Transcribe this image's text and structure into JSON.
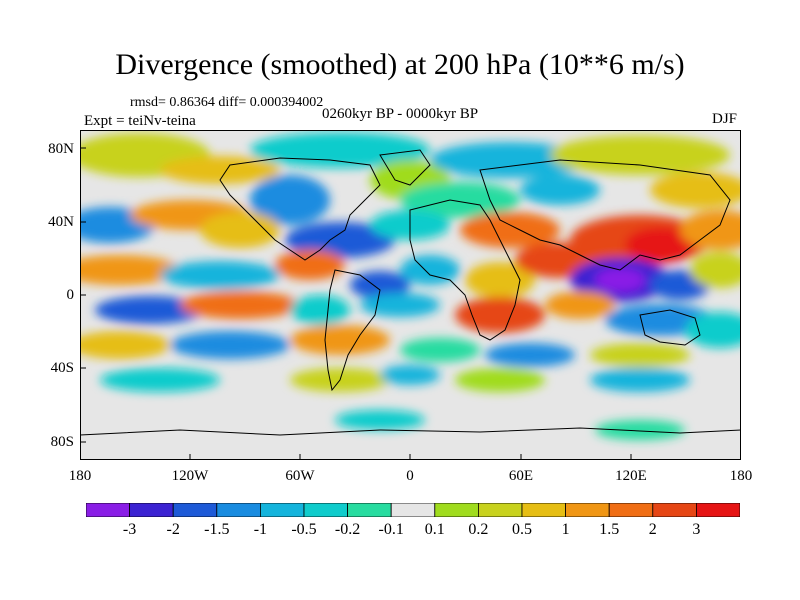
{
  "title": "Divergence (smoothed) at 200 hPa (10**6 m/s)",
  "stats_line": "rmsd= 0.86364  diff= 0.000394002",
  "experiment": "Expt = teiNv-teina",
  "period": "0260kyr BP - 0000kyr BP",
  "season": "DJF",
  "lat_labels": [
    "80N",
    "40N",
    "0",
    "40S",
    "80S"
  ],
  "lon_labels": [
    "180",
    "120W",
    "60W",
    "0",
    "60E",
    "120E",
    "180"
  ],
  "colorbar": {
    "colors": [
      "#8a1ee6",
      "#3c23d2",
      "#1e5ad7",
      "#1a8ce0",
      "#14b4dc",
      "#10cccc",
      "#28dca0",
      "#e6e6e6",
      "#a0dc1e",
      "#c8d21e",
      "#e6be14",
      "#f09614",
      "#f06e14",
      "#e64614",
      "#e61414"
    ],
    "labels": [
      "-3",
      "-2",
      "-1.5",
      "-1",
      "-0.5",
      "-0.2",
      "-0.1",
      "0.1",
      "0.2",
      "0.5",
      "1",
      "1.5",
      "2",
      "3"
    ]
  }
}
